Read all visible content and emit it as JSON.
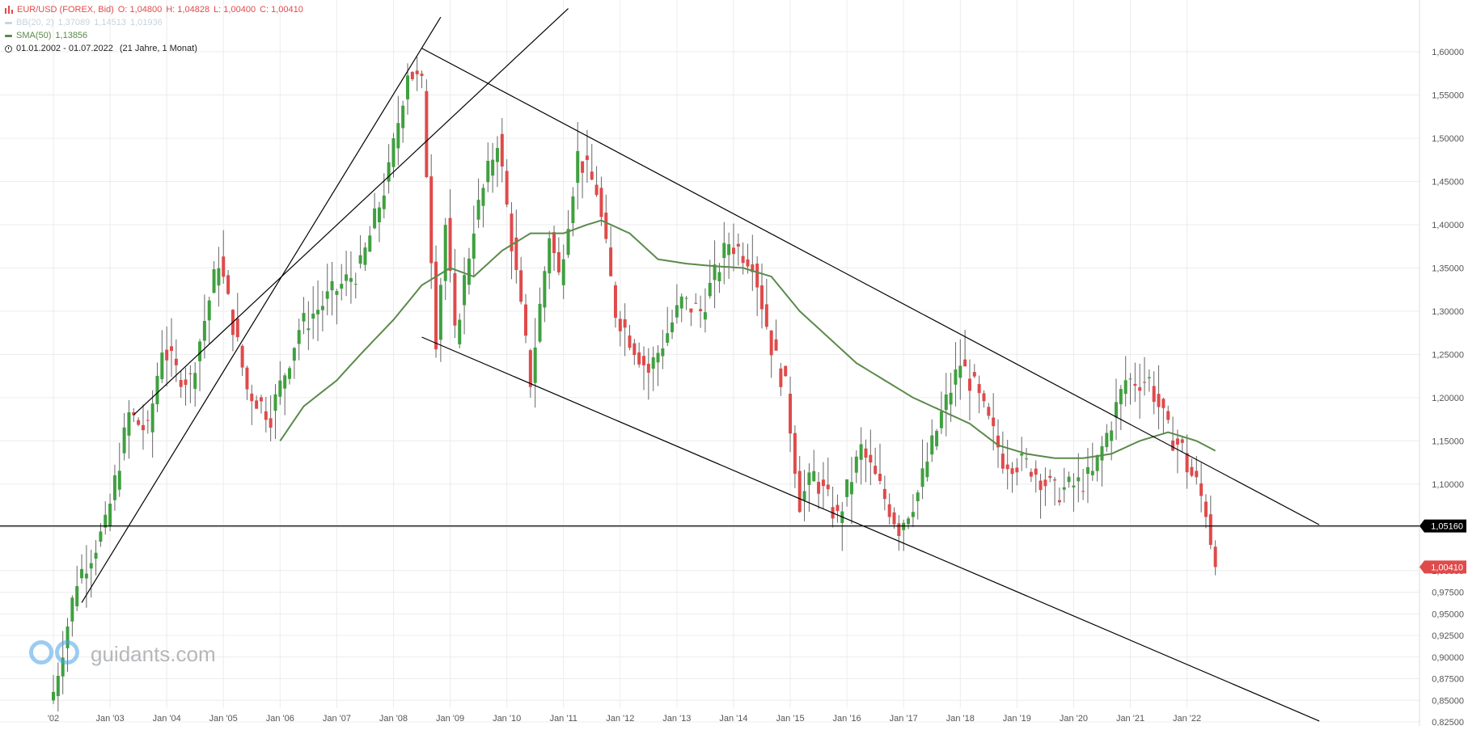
{
  "header": {
    "symbol_line": "EUR/USD (FOREX, Bid)",
    "ohlc": {
      "O": "1,04800",
      "H": "1,04828",
      "L": "1,00400",
      "C": "1,00410"
    },
    "bb_line": "BB(20, 2)",
    "bb_values": [
      "1,37089",
      "1,14513",
      "1,01936"
    ],
    "sma_line": "SMA(50)",
    "sma_value": "1,13856",
    "period_line": "01.01.2002 - 01.07.2022",
    "period_detail": "(21 Jahre, 1 Monat)"
  },
  "watermark": "guidants.com",
  "colors": {
    "up": "#3fa03f",
    "down": "#e04a4a",
    "sma": "#5a8a4a",
    "grid": "#ececec",
    "line": "#000000"
  },
  "chart_data": {
    "type": "candlestick",
    "title": "EUR/USD (FOREX, Bid)",
    "interval": "1 Monat",
    "ylim": [
      0.825,
      1.625
    ],
    "y_ticks": [
      "1,60000",
      "1,55000",
      "1,50000",
      "1,45000",
      "1,40000",
      "1,35000",
      "1,30000",
      "1,25000",
      "1,20000",
      "1,15000",
      "1,10000",
      "1,05000",
      "1,00000",
      "0,97500",
      "0,95000",
      "0,92500",
      "0,90000",
      "0,87500",
      "0,85000",
      "0,82500"
    ],
    "x_ticks": [
      {
        "label": "'02",
        "date": "2002-01"
      },
      {
        "label": "Jan '03",
        "date": "2003-01"
      },
      {
        "label": "Jan '04",
        "date": "2004-01"
      },
      {
        "label": "Jan '05",
        "date": "2005-01"
      },
      {
        "label": "Jan '06",
        "date": "2006-01"
      },
      {
        "label": "Jan '07",
        "date": "2007-01"
      },
      {
        "label": "Jan '08",
        "date": "2008-01"
      },
      {
        "label": "Jan '09",
        "date": "2009-01"
      },
      {
        "label": "Jan '10",
        "date": "2010-01"
      },
      {
        "label": "Jan '11",
        "date": "2011-01"
      },
      {
        "label": "Jan '12",
        "date": "2012-01"
      },
      {
        "label": "Jan '13",
        "date": "2013-01"
      },
      {
        "label": "Jan '14",
        "date": "2014-01"
      },
      {
        "label": "Jan '15",
        "date": "2015-01"
      },
      {
        "label": "Jan '16",
        "date": "2016-01"
      },
      {
        "label": "Jan '17",
        "date": "2017-01"
      },
      {
        "label": "Jan '18",
        "date": "2018-01"
      },
      {
        "label": "Jan '19",
        "date": "2019-01"
      },
      {
        "label": "Jan '20",
        "date": "2020-01"
      },
      {
        "label": "Jan '21",
        "date": "2021-01"
      },
      {
        "label": "Jan '22",
        "date": "2022-01"
      }
    ],
    "close_anchors": [
      [
        "2002-01",
        0.86
      ],
      [
        "2002-06",
        0.99
      ],
      [
        "2002-12",
        1.05
      ],
      [
        "2003-05",
        1.18
      ],
      [
        "2003-09",
        1.16
      ],
      [
        "2003-12",
        1.26
      ],
      [
        "2004-03",
        1.23
      ],
      [
        "2004-06",
        1.22
      ],
      [
        "2004-12",
        1.36
      ],
      [
        "2005-06",
        1.21
      ],
      [
        "2005-11",
        1.18
      ],
      [
        "2006-05",
        1.28
      ],
      [
        "2006-12",
        1.32
      ],
      [
        "2007-06",
        1.35
      ],
      [
        "2007-12",
        1.46
      ],
      [
        "2008-04",
        1.58
      ],
      [
        "2008-07",
        1.56
      ],
      [
        "2008-10",
        1.27
      ],
      [
        "2008-12",
        1.4
      ],
      [
        "2009-02",
        1.27
      ],
      [
        "2009-06",
        1.4
      ],
      [
        "2009-11",
        1.5
      ],
      [
        "2010-06",
        1.22
      ],
      [
        "2010-10",
        1.39
      ],
      [
        "2010-12",
        1.34
      ],
      [
        "2011-04",
        1.48
      ],
      [
        "2011-08",
        1.44
      ],
      [
        "2011-12",
        1.3
      ],
      [
        "2012-07",
        1.23
      ],
      [
        "2013-02",
        1.31
      ],
      [
        "2013-06",
        1.3
      ],
      [
        "2013-12",
        1.38
      ],
      [
        "2014-05",
        1.36
      ],
      [
        "2014-09",
        1.26
      ],
      [
        "2014-12",
        1.21
      ],
      [
        "2015-03",
        1.08
      ],
      [
        "2015-06",
        1.11
      ],
      [
        "2015-11",
        1.06
      ],
      [
        "2016-04",
        1.14
      ],
      [
        "2016-12",
        1.05
      ],
      [
        "2017-04",
        1.09
      ],
      [
        "2017-09",
        1.18
      ],
      [
        "2018-01",
        1.24
      ],
      [
        "2018-04",
        1.21
      ],
      [
        "2018-10",
        1.13
      ],
      [
        "2019-04",
        1.12
      ],
      [
        "2019-09",
        1.09
      ],
      [
        "2020-02",
        1.1
      ],
      [
        "2020-05",
        1.11
      ],
      [
        "2020-12",
        1.22
      ],
      [
        "2021-05",
        1.22
      ],
      [
        "2021-09",
        1.16
      ],
      [
        "2021-12",
        1.14
      ],
      [
        "2022-01",
        1.12
      ],
      [
        "2022-03",
        1.1
      ],
      [
        "2022-05",
        1.07
      ],
      [
        "2022-07",
        1.0041
      ]
    ],
    "sma50_anchors": [
      [
        "2006-01",
        1.15
      ],
      [
        "2006-06",
        1.19
      ],
      [
        "2007-01",
        1.22
      ],
      [
        "2007-06",
        1.25
      ],
      [
        "2008-01",
        1.29
      ],
      [
        "2008-07",
        1.33
      ],
      [
        "2009-01",
        1.35
      ],
      [
        "2009-06",
        1.34
      ],
      [
        "2009-12",
        1.37
      ],
      [
        "2010-06",
        1.39
      ],
      [
        "2011-01",
        1.39
      ],
      [
        "2011-06",
        1.4
      ],
      [
        "2011-09",
        1.405
      ],
      [
        "2012-03",
        1.39
      ],
      [
        "2012-09",
        1.36
      ],
      [
        "2013-03",
        1.355
      ],
      [
        "2013-09",
        1.352
      ],
      [
        "2014-03",
        1.35
      ],
      [
        "2014-09",
        1.34
      ],
      [
        "2015-03",
        1.3
      ],
      [
        "2015-09",
        1.27
      ],
      [
        "2016-03",
        1.24
      ],
      [
        "2016-09",
        1.22
      ],
      [
        "2017-03",
        1.2
      ],
      [
        "2017-09",
        1.185
      ],
      [
        "2018-03",
        1.17
      ],
      [
        "2018-09",
        1.145
      ],
      [
        "2019-03",
        1.135
      ],
      [
        "2019-09",
        1.13
      ],
      [
        "2020-03",
        1.13
      ],
      [
        "2020-09",
        1.135
      ],
      [
        "2021-03",
        1.15
      ],
      [
        "2021-09",
        1.16
      ],
      [
        "2022-03",
        1.15
      ],
      [
        "2022-07",
        1.13856
      ]
    ],
    "horizontal_level": 1.0516,
    "labels": {
      "horizontal_level": "1,05160",
      "last_close": "1,00410"
    },
    "trendlines": [
      {
        "from": [
          "2002-07",
          0.963
        ],
        "to": [
          "2008-11",
          1.64
        ]
      },
      {
        "from": [
          "2003-06",
          1.18
        ],
        "to": [
          "2011-02",
          1.65
        ]
      },
      {
        "from": [
          "2008-07",
          1.604
        ],
        "to": [
          "2024-05",
          1.053
        ]
      },
      {
        "from": [
          "2008-07",
          1.27
        ],
        "to": [
          "2024-05",
          0.826
        ]
      }
    ]
  }
}
